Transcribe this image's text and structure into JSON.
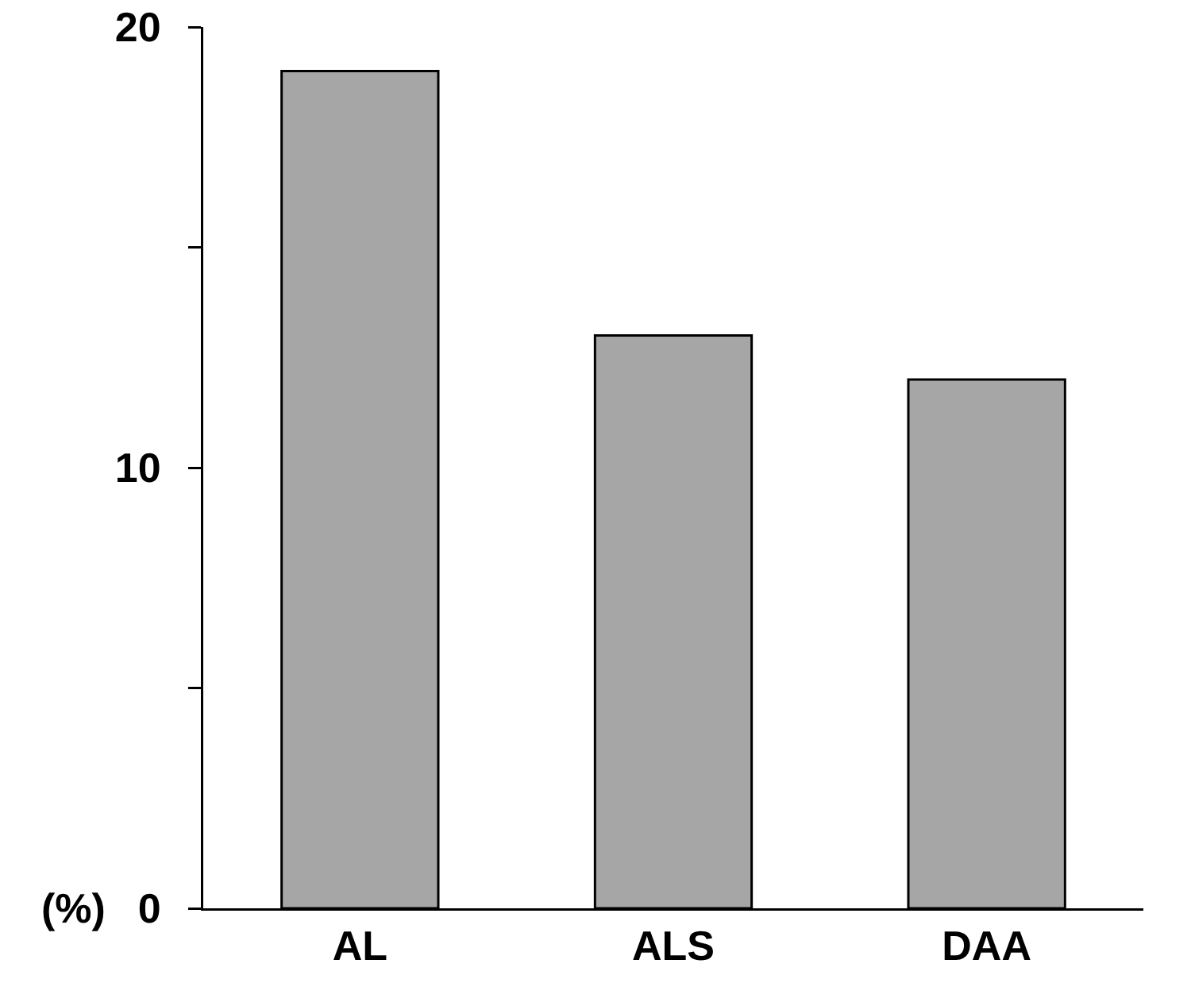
{
  "chart_data": {
    "type": "bar",
    "ylabel": "(%)",
    "categories": [
      "AL",
      "ALS",
      "DAA"
    ],
    "values": [
      19,
      13,
      12
    ],
    "color": "#a6a6a6",
    "ylim": [
      0,
      20
    ],
    "yticks": [
      0,
      {
        "value": 5,
        "label": null
      },
      10,
      {
        "value": 15,
        "label": null
      },
      20
    ],
    "grid": false
  }
}
